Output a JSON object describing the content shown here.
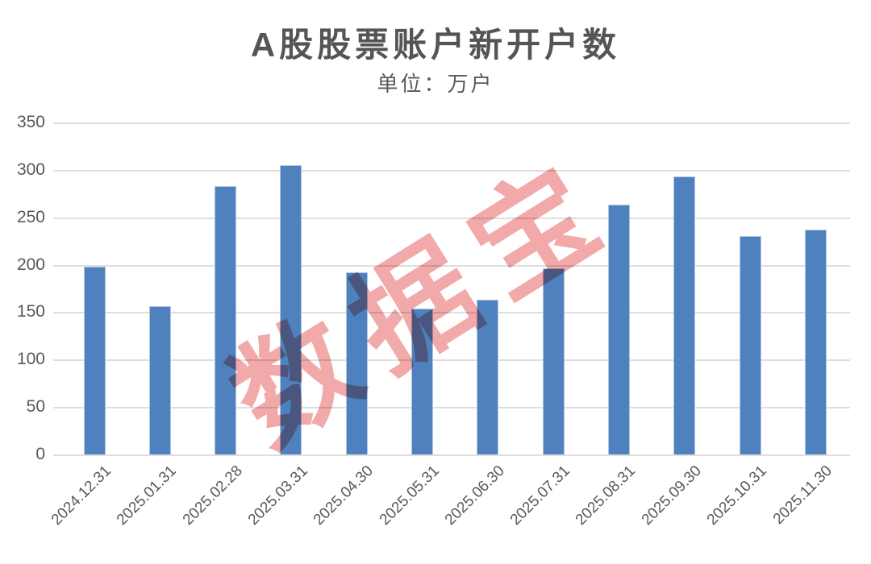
{
  "chart_data": {
    "type": "bar",
    "title": "A股股票账户新开户数",
    "subtitle": "单位：万户",
    "ylabel": "",
    "xlabel": "",
    "categories": [
      "2024.12.31",
      "2025.01.31",
      "2025.02.28",
      "2025.03.31",
      "2025.04.30",
      "2025.05.31",
      "2025.06.30",
      "2025.07.31",
      "2025.08.31",
      "2025.09.30",
      "2025.10.31",
      "2025.11.30"
    ],
    "values": [
      198,
      156,
      283,
      305,
      192,
      154,
      163,
      196,
      263,
      293,
      230,
      237
    ],
    "ylim": [
      0,
      350
    ],
    "yticks": [
      0,
      50,
      100,
      150,
      200,
      250,
      300,
      350
    ],
    "grid": "horizontal",
    "legend": "none",
    "bar_color": "#4e81bd",
    "gridline_color": "#dedede",
    "text_color": "#595959",
    "title_color": "#555555",
    "watermark": {
      "text": "数据宝",
      "color": "#e87070",
      "opacity": 0.6,
      "rotation_deg": -32
    }
  }
}
